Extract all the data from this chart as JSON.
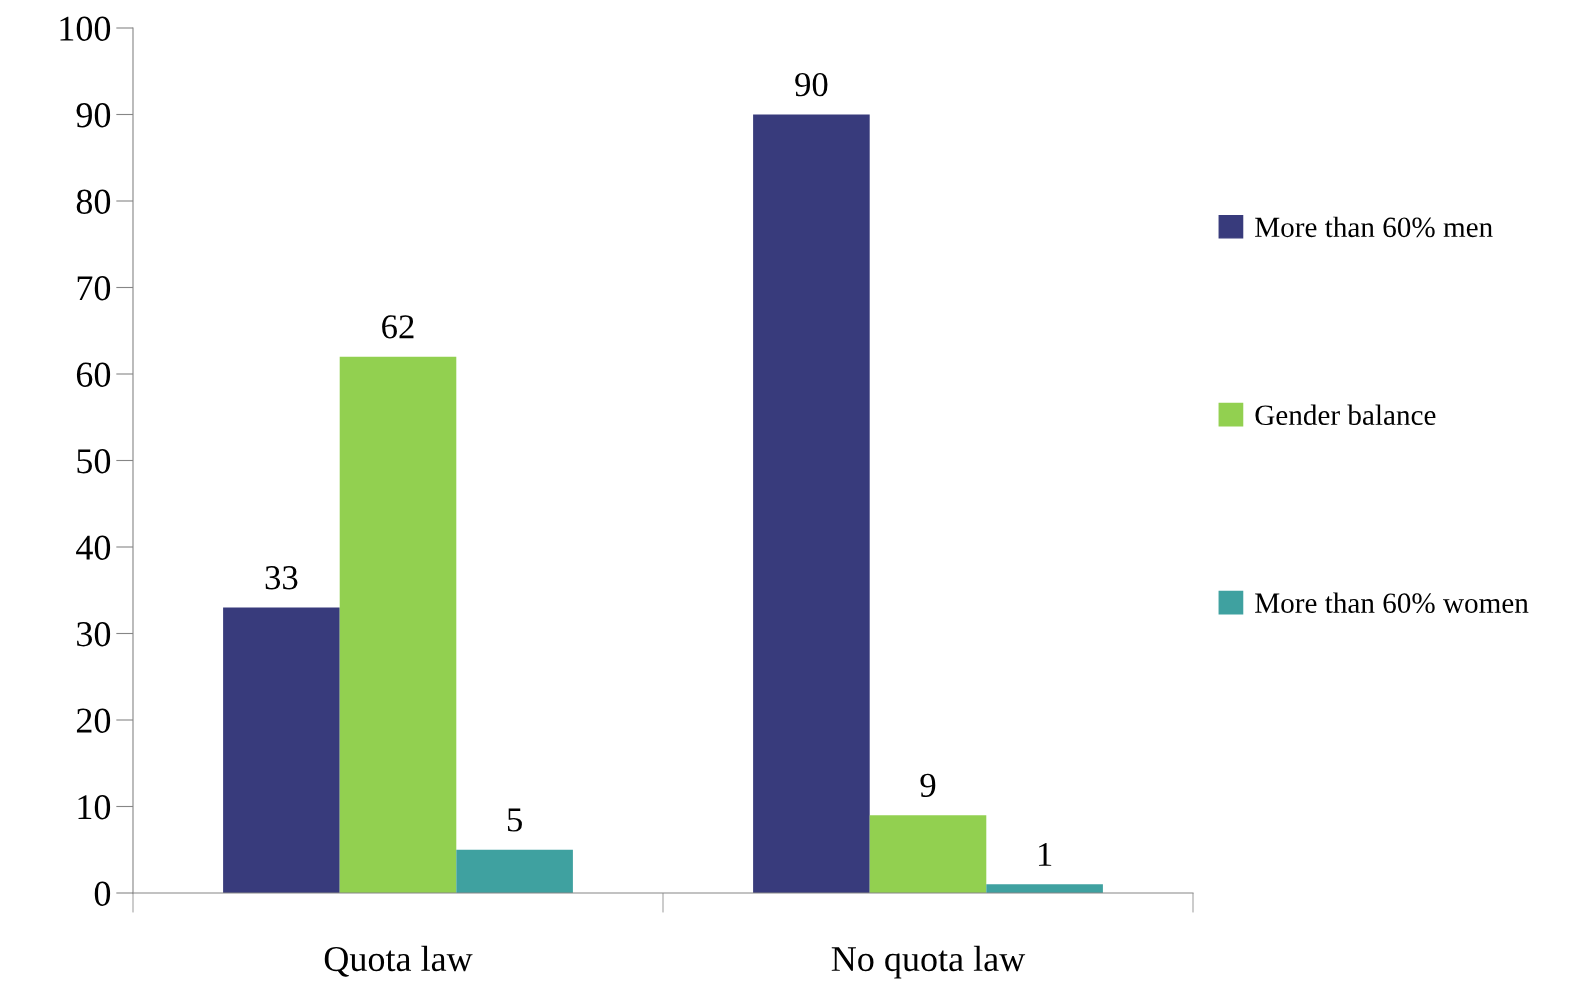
{
  "chart_data": {
    "type": "bar",
    "categories": [
      "Quota law",
      "No quota law"
    ],
    "series": [
      {
        "name": "More than 60% men",
        "color": "#383b7c",
        "values": [
          33,
          90
        ]
      },
      {
        "name": "Gender balance",
        "color": "#92d050",
        "values": [
          62,
          9
        ]
      },
      {
        "name": "More than 60% women",
        "color": "#3fa1a0",
        "values": [
          5,
          1
        ]
      }
    ],
    "ylim": [
      0,
      100
    ],
    "yticks": [
      0,
      10,
      20,
      30,
      40,
      50,
      60,
      70,
      80,
      90,
      100
    ],
    "data_labels": true,
    "legend": "right",
    "grid": false
  }
}
